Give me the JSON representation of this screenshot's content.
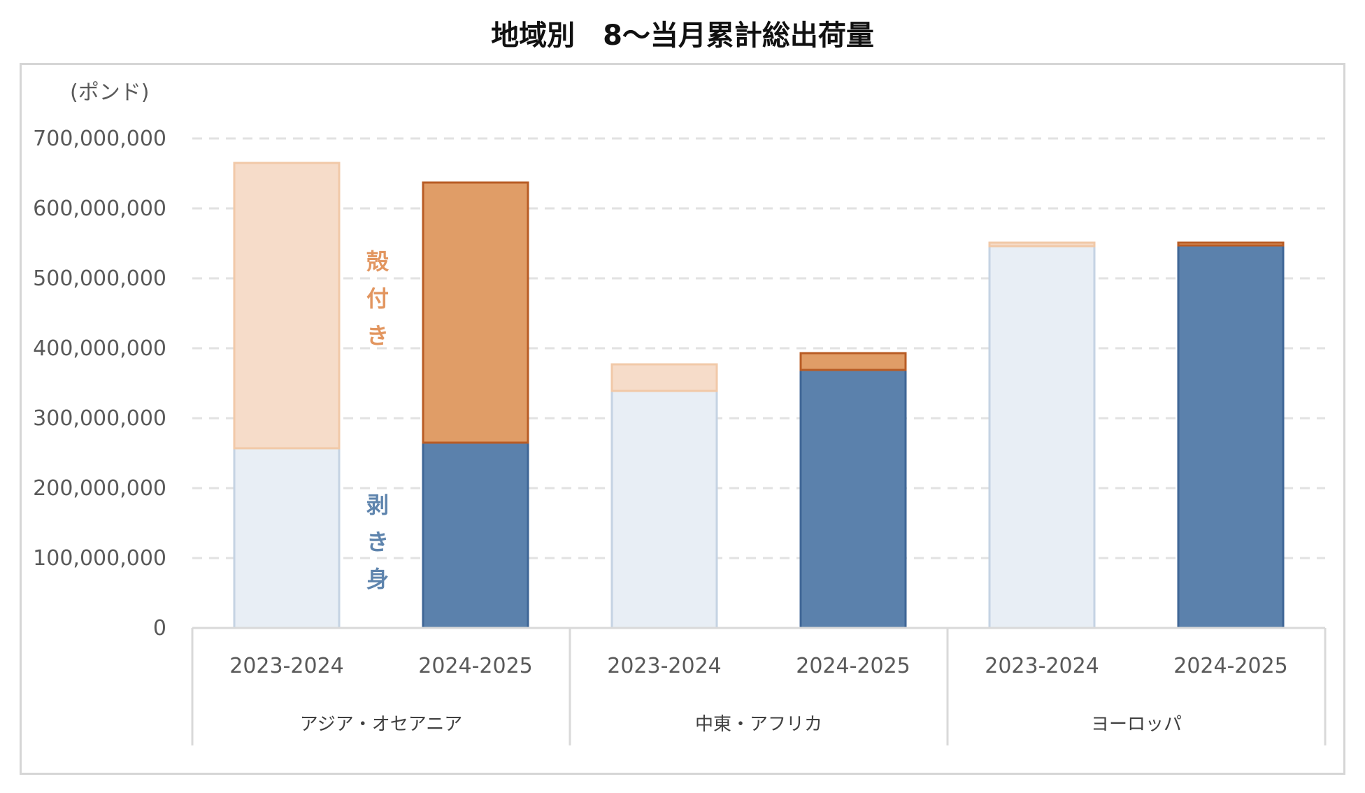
{
  "chart_data": {
    "type": "bar",
    "stacked": true,
    "title": "地域別　8～当月累計総出荷量",
    "unit_label": "(ポンド)",
    "ylim": [
      0,
      700000000
    ],
    "y_ticks": [
      "0",
      "100,000,000",
      "200,000,000",
      "300,000,000",
      "400,000,000",
      "500,000,000",
      "600,000,000",
      "700,000,000"
    ],
    "y_tick_values": [
      0,
      100000000,
      200000000,
      300000000,
      400000000,
      500000000,
      600000000,
      700000000
    ],
    "grid": true,
    "groups": [
      {
        "name": "アジア・オセアニア",
        "categories": [
          "2023-2024",
          "2024-2025"
        ]
      },
      {
        "name": "中東・アフリカ",
        "categories": [
          "2023-2024",
          "2024-2025"
        ]
      },
      {
        "name": "ヨーロッパ",
        "categories": [
          "2023-2024",
          "2024-2025"
        ]
      }
    ],
    "categories": [
      "2023-2024",
      "2024-2025",
      "2023-2024",
      "2024-2025",
      "2023-2024",
      "2024-2025"
    ],
    "series": [
      {
        "name": "剥き身",
        "values": [
          257000000,
          265000000,
          339000000,
          369000000,
          546000000,
          547000000
        ],
        "colors": [
          "#e8eef5",
          "#5b81ac",
          "#e8eef5",
          "#5b81ac",
          "#e8eef5",
          "#5b81ac"
        ],
        "strokes": [
          "#c5d3e3",
          "#3f6696",
          "#c5d3e3",
          "#3f6696",
          "#c5d3e3",
          "#3f6696"
        ]
      },
      {
        "name": "殻付き",
        "values": [
          408000000,
          372000000,
          38000000,
          24000000,
          5000000,
          4000000
        ],
        "colors": [
          "#f6dcc9",
          "#e09d67",
          "#f6dcc9",
          "#e09d67",
          "#f6dcc9",
          "#e09d67"
        ],
        "strokes": [
          "#f1c9a8",
          "#b85c25",
          "#f1c9a8",
          "#b85c25",
          "#f1c9a8",
          "#b85c25"
        ]
      }
    ],
    "annotations": [
      {
        "text": "殻付き",
        "color": "#e29660"
      },
      {
        "text": "剥き身",
        "color": "#5e84ad"
      }
    ]
  }
}
